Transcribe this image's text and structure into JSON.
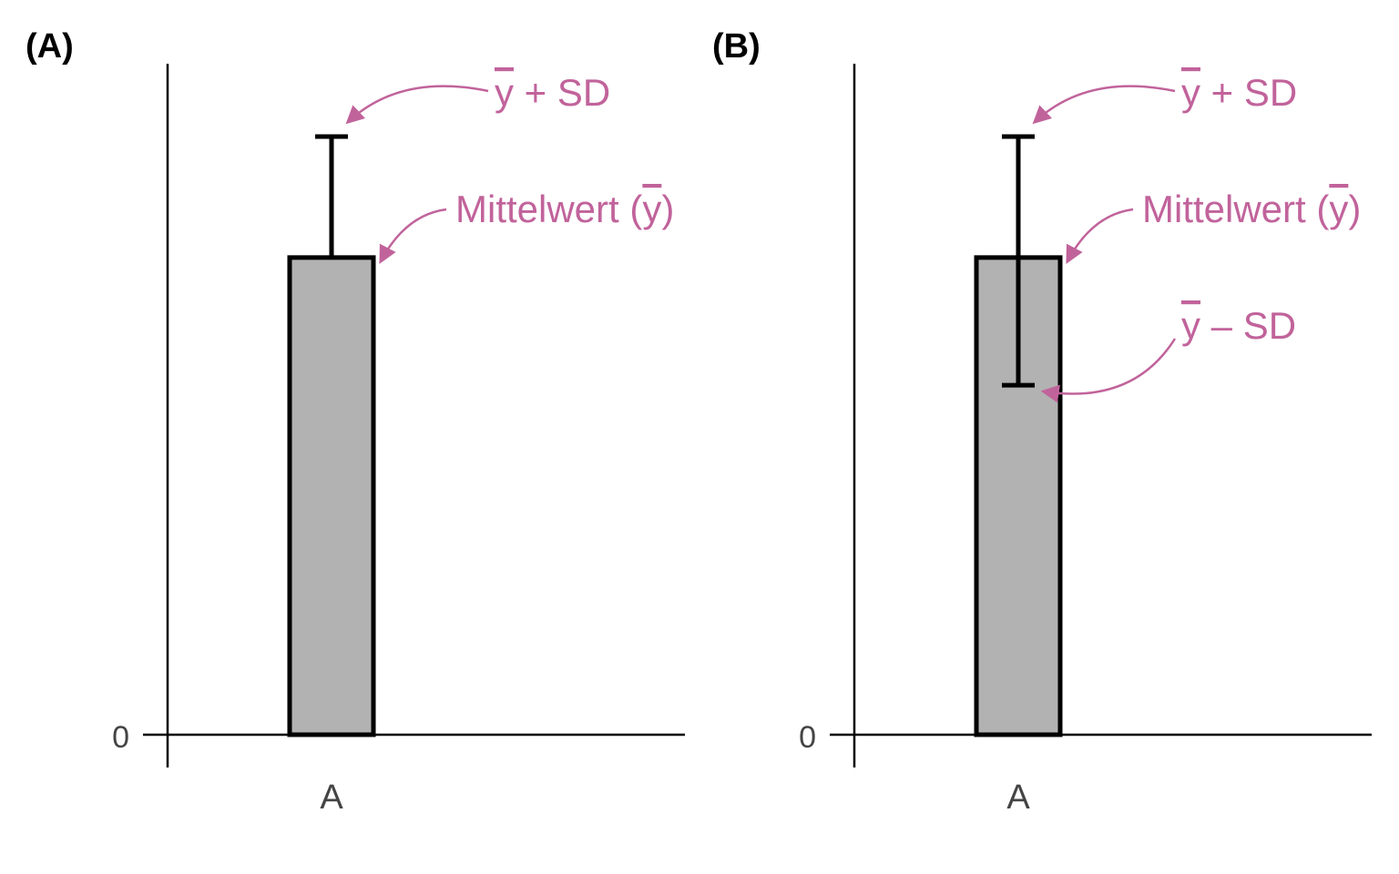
{
  "panels": [
    {
      "label": "(A)",
      "ytick_label": "0",
      "annotations": {
        "upper": "y + SD",
        "mean": "Mittelwert (y)"
      }
    },
    {
      "label": "(B)",
      "ytick_label": "0",
      "annotations": {
        "upper": "y + SD",
        "mean": "Mittelwert (y)",
        "lower": "y – SD"
      }
    }
  ],
  "colors": {
    "accent": "#c1639b",
    "bar_fill": "#b2b2b2",
    "bar_stroke": "#000000"
  },
  "chart_data": [
    {
      "type": "bar",
      "categories": [
        "A"
      ],
      "values": [
        0.71
      ],
      "error_bar": {
        "upper": 0.89
      },
      "ylim": [
        0,
        1
      ],
      "grid": false,
      "annotations": [
        "y + SD",
        "Mittelwert (y)"
      ]
    },
    {
      "type": "bar",
      "categories": [
        "A"
      ],
      "values": [
        0.71
      ],
      "error_bar": {
        "upper": 0.89,
        "lower": 0.52
      },
      "ylim": [
        0,
        1
      ],
      "grid": false,
      "annotations": [
        "y + SD",
        "Mittelwert (y)",
        "y – SD"
      ]
    }
  ]
}
